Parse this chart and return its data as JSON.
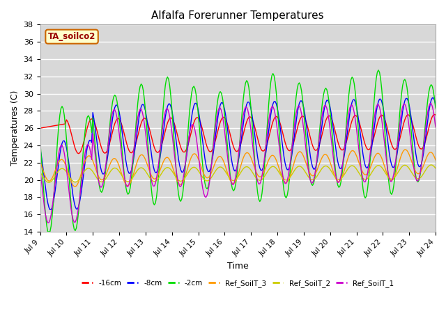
{
  "title": "Alfalfa Forerunner Temperatures",
  "xlabel": "Time",
  "ylabel": "Temperatures (C)",
  "ylim": [
    14,
    38
  ],
  "yticks": [
    14,
    16,
    18,
    20,
    22,
    24,
    26,
    28,
    30,
    32,
    34,
    36,
    38
  ],
  "xlim_days": [
    9,
    24
  ],
  "xtick_days": [
    9,
    10,
    11,
    12,
    13,
    14,
    15,
    16,
    17,
    18,
    19,
    20,
    21,
    22,
    23,
    24
  ],
  "xtick_labels": [
    "Jul 9",
    "Jul 10",
    "Jul 11",
    "Jul 12",
    "Jul 13",
    "Jul 14",
    "Jul 15",
    "Jul 16",
    "Jul 17",
    "Jul 18",
    "Jul 19",
    "Jul 20",
    "Jul 21",
    "Jul 22",
    "Jul 23",
    "Jul 24"
  ],
  "annotation_text": "TA_soilco2",
  "bg_color": "#d8d8d8",
  "series": [
    {
      "label": "-16cm",
      "color": "#ff0000"
    },
    {
      "label": "-8cm",
      "color": "#0000ff"
    },
    {
      "label": "-2cm",
      "color": "#00dd00"
    },
    {
      "label": "Ref_SoilT_3",
      "color": "#ff9900"
    },
    {
      "label": "Ref_SoilT_2",
      "color": "#cccc00"
    },
    {
      "label": "Ref_SoilT_1",
      "color": "#cc00cc"
    }
  ]
}
